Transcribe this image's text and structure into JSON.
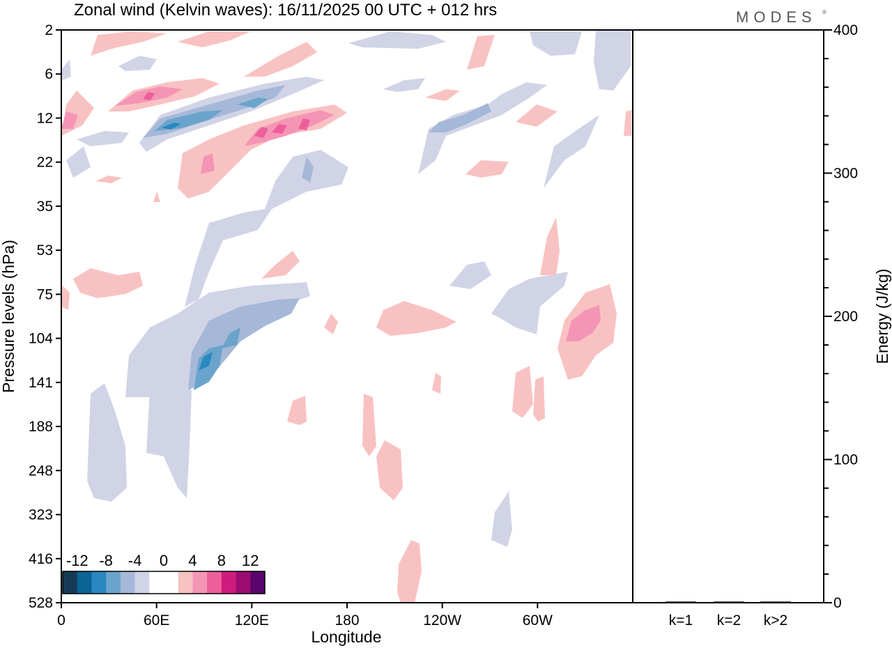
{
  "chart_data": {
    "type": "heatmap",
    "title": "Zonal wind (Kelvin waves):  16/11/2025  00 UTC  + 012 hrs",
    "brand": "MODES",
    "xlabel": "Longitude",
    "ylabel": "Pressure levels (hPa)",
    "x_ticks": [
      "0",
      "60E",
      "120E",
      "180",
      "120W",
      "60W"
    ],
    "y_ticks": [
      "2",
      "6",
      "12",
      "22",
      "35",
      "53",
      "75",
      "104",
      "141",
      "188",
      "248",
      "323",
      "416",
      "528"
    ],
    "colorbar": {
      "tick_labels": [
        "-12",
        "-8",
        "-4",
        "0",
        "4",
        "8",
        "12"
      ],
      "colors": [
        "#163a55",
        "#0b6396",
        "#2a87c0",
        "#6aa4cc",
        "#a5b8d8",
        "#d1d4e6",
        "#ffffff",
        "#ffffff",
        "#f9c2c2",
        "#f595b6",
        "#ec5f9b",
        "#cc1c7e",
        "#9b0c72",
        "#5a056b"
      ]
    },
    "features": [
      {
        "sign": "negative",
        "level": 2,
        "lon": [
          200,
          230
        ],
        "p": [
          "6",
          "12"
        ]
      },
      {
        "sign": "negative",
        "level": 1,
        "lon": [
          120,
          210
        ],
        "p": [
          "35",
          "104"
        ]
      },
      {
        "sign": "negative",
        "level": 3,
        "lon": [
          70,
          120
        ],
        "p": [
          "75",
          "141"
        ]
      },
      {
        "sign": "positive",
        "level": 3,
        "lon": [
          20,
          135
        ],
        "p": [
          "12",
          "22"
        ]
      },
      {
        "sign": "positive",
        "level": 2,
        "lon": [
          300,
          325
        ],
        "p": [
          "75",
          "141"
        ]
      },
      {
        "sign": "positive",
        "level": 1,
        "lon": [
          150,
          200
        ],
        "p": [
          "188",
          "528"
        ]
      }
    ],
    "energy_panel": {
      "ylabel": "Energy (J/kg)",
      "y_ticks": [
        "400",
        "300",
        "200",
        "100",
        "0"
      ],
      "ylim": [
        0,
        400
      ],
      "categories": [
        "k=1",
        "k=2",
        "k>2"
      ],
      "values": [
        0.5,
        0.5,
        0.5
      ]
    }
  }
}
